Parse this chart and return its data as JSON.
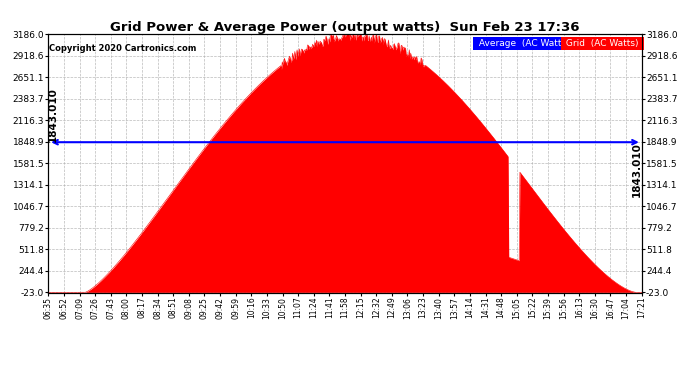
{
  "title": "Grid Power & Average Power (output watts)  Sun Feb 23 17:36",
  "copyright": "Copyright 2020 Cartronics.com",
  "average_value": 1843.01,
  "average_label": "1843.010",
  "y_min": -23.0,
  "y_max": 3186.0,
  "yticks": [
    -23.0,
    244.4,
    511.8,
    779.2,
    1046.7,
    1314.1,
    1581.5,
    1848.9,
    2116.3,
    2383.7,
    2651.1,
    2918.6,
    3186.0
  ],
  "ytick_labels": [
    "-23.0",
    "244.4",
    "511.8",
    "779.2",
    "1046.7",
    "1314.1",
    "1581.5",
    "1848.9",
    "2116.3",
    "2383.7",
    "2651.1",
    "2918.6",
    "3186.0"
  ],
  "x_labels": [
    "06:35",
    "06:52",
    "07:09",
    "07:26",
    "07:43",
    "08:00",
    "08:17",
    "08:34",
    "08:51",
    "09:08",
    "09:25",
    "09:42",
    "09:59",
    "10:16",
    "10:33",
    "10:50",
    "11:07",
    "11:24",
    "11:41",
    "11:58",
    "12:15",
    "12:32",
    "12:49",
    "13:06",
    "13:23",
    "13:40",
    "13:57",
    "14:14",
    "14:31",
    "14:48",
    "15:05",
    "15:22",
    "15:39",
    "15:56",
    "16:13",
    "16:30",
    "16:47",
    "17:04",
    "17:21"
  ],
  "fill_color": "#FF0000",
  "line_color": "#FF0000",
  "avg_line_color": "#0000FF",
  "background_color": "#FFFFFF",
  "grid_color": "#AAAAAA",
  "legend_avg_bg": "#0000FF",
  "legend_grid_bg": "#FF0000",
  "legend_text_color": "#FFFFFF",
  "title_color": "#000000",
  "copyright_color": "#000000"
}
